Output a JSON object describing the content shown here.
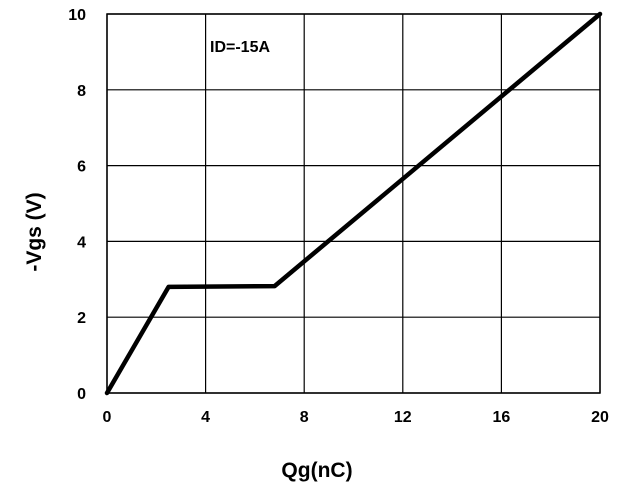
{
  "chart_data": {
    "type": "line",
    "title": "",
    "xlabel": "Qg(nC)",
    "ylabel": "-Vgs (V)",
    "xlim": [
      0,
      20
    ],
    "ylim": [
      0,
      10
    ],
    "x_ticks": [
      0,
      4,
      8,
      12,
      16,
      20
    ],
    "y_ticks": [
      0,
      2,
      4,
      6,
      8,
      10
    ],
    "x_tick_labels": [
      "0",
      "4",
      "8",
      "12",
      "16",
      "20"
    ],
    "y_tick_labels": [
      "0",
      "2",
      "4",
      "6",
      "8",
      "10"
    ],
    "grid": true,
    "annotation": "ID=-15A",
    "series": [
      {
        "x": [
          0,
          2.5,
          6.8,
          20
        ],
        "y": [
          0,
          2.8,
          2.82,
          10
        ],
        "color": "#000000"
      }
    ]
  }
}
